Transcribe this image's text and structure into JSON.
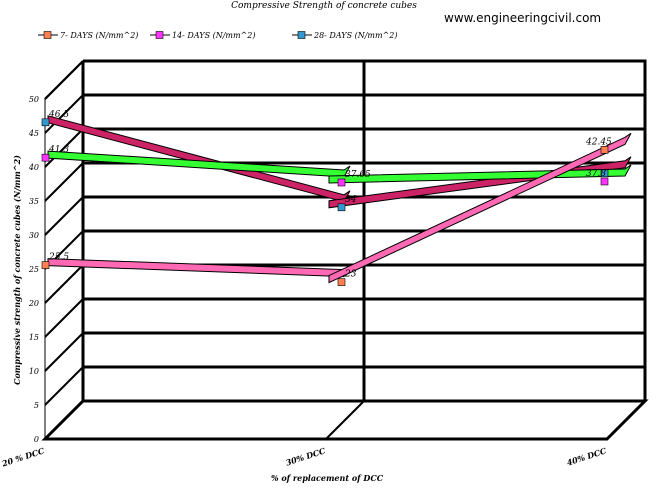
{
  "watermark": "www.engineeringcivil.com",
  "chart_data": {
    "type": "line",
    "title": "Compressive Strength of concrete cubes",
    "xlabel": "% of replacement of DCC",
    "ylabel": "Compressive strength of concrete cubes (N/mm^2)",
    "categories": [
      "20 % DCC",
      "30% DCC",
      "40% DCC"
    ],
    "ylim": [
      0,
      50
    ],
    "yticks": [
      "0",
      "5",
      "10",
      "15",
      "20",
      "25",
      "30",
      "35",
      "40",
      "45",
      "50"
    ],
    "grid": true,
    "legend_position": "top-left",
    "series": [
      {
        "name": "7- DAYS (N/mm^2)",
        "values": [
          25.5,
          23,
          42.45
        ],
        "labels": [
          "25.5",
          "23",
          "42.45"
        ],
        "color": "#FF69B4",
        "marker": "#FF7F50"
      },
      {
        "name": "14- DAYS (N/mm^2)",
        "values": [
          41.3,
          37.65,
          37.8
        ],
        "labels": [
          "41.3",
          "37.65",
          "37.8"
        ],
        "color": "#33FF33",
        "marker": "#FF33FF"
      },
      {
        "name": "28- DAYS (N/mm^2)",
        "values": [
          46.5,
          34,
          39
        ],
        "labels": [
          "46.5",
          "34",
          ""
        ],
        "color": "#CC2266",
        "marker": "#3399CC"
      }
    ]
  }
}
